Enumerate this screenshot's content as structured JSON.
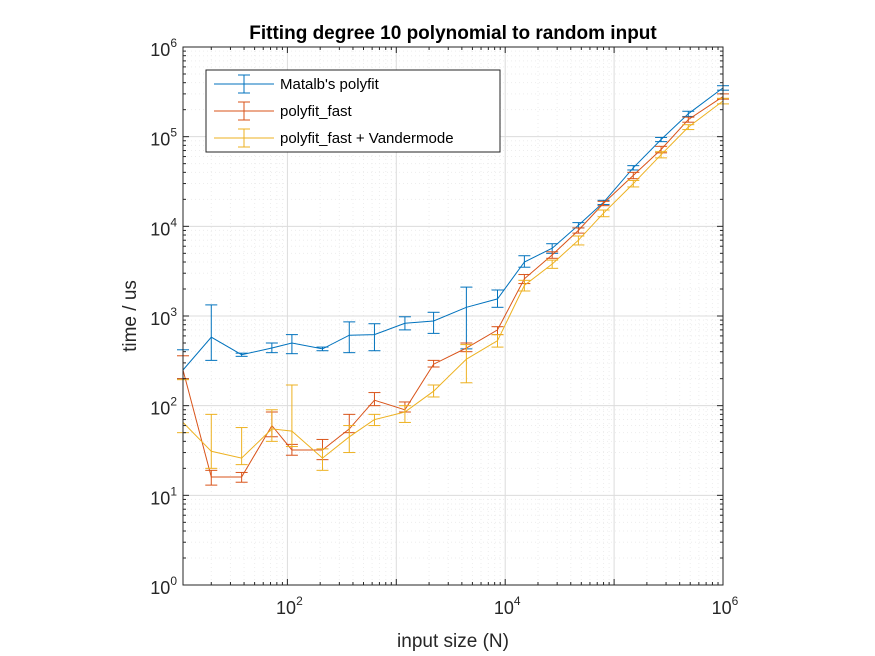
{
  "chart_data": {
    "type": "line",
    "title": "Fitting degree 10 polynomial to random input",
    "xlabel": "input size (N)",
    "ylabel": "time / us",
    "xscale": "log",
    "yscale": "log",
    "xlim": [
      11,
      1000000
    ],
    "ylim": [
      1,
      1000000
    ],
    "x_ticks": [
      {
        "base": "10",
        "exp": "2",
        "value": 100
      },
      {
        "base": "10",
        "exp": "4",
        "value": 10000
      },
      {
        "base": "10",
        "exp": "6",
        "value": 1000000
      }
    ],
    "y_ticks": [
      {
        "base": "10",
        "exp": "0",
        "value": 1
      },
      {
        "base": "10",
        "exp": "1",
        "value": 10
      },
      {
        "base": "10",
        "exp": "2",
        "value": 100
      },
      {
        "base": "10",
        "exp": "3",
        "value": 1000
      },
      {
        "base": "10",
        "exp": "4",
        "value": 10000
      },
      {
        "base": "10",
        "exp": "5",
        "value": 100000
      },
      {
        "base": "10",
        "exp": "6",
        "value": 1000000
      }
    ],
    "grid": true,
    "legend_position": "top-left",
    "x": [
      11,
      20,
      38,
      72,
      110,
      210,
      370,
      630,
      1200,
      2200,
      4400,
      8500,
      15000,
      27000,
      47000,
      80000,
      150000,
      270000,
      480000,
      1000000
    ],
    "series": [
      {
        "name": "Matalb's polyfit",
        "color": "#0072bd",
        "values": [
          250,
          580,
          370,
          440,
          500,
          430,
          610,
          620,
          830,
          880,
          1250,
          1550,
          4000,
          5700,
          10300,
          18500,
          45000,
          93000,
          180000,
          350000
        ],
        "err_low": [
          200,
          320,
          355,
          390,
          380,
          410,
          390,
          410,
          700,
          640,
          430,
          1250,
          3500,
          5000,
          9600,
          17500,
          42500,
          88000,
          168000,
          330000
        ],
        "err_high": [
          420,
          1330,
          385,
          500,
          620,
          450,
          860,
          820,
          980,
          1100,
          2100,
          1950,
          4700,
          6400,
          11000,
          19500,
          47500,
          98000,
          192000,
          370000
        ]
      },
      {
        "name": "polyfit_fast",
        "color": "#d95319",
        "values": [
          250,
          16,
          16,
          60,
          32,
          32,
          55,
          115,
          90,
          290,
          440,
          700,
          2600,
          4800,
          9000,
          18000,
          37000,
          72000,
          155000,
          280000
        ],
        "err_low": [
          200,
          13,
          14,
          45,
          28,
          25,
          50,
          100,
          85,
          270,
          400,
          620,
          2300,
          4400,
          8400,
          17000,
          34000,
          66000,
          145000,
          262000
        ],
        "err_high": [
          360,
          19,
          18,
          85,
          37,
          42,
          80,
          140,
          110,
          320,
          500,
          760,
          2900,
          5200,
          9600,
          19000,
          40000,
          78000,
          165000,
          300000
        ]
      },
      {
        "name": "polyfit_fast + Vandermode",
        "color": "#edb120",
        "values": [
          65,
          31,
          26,
          55,
          52,
          26,
          45,
          70,
          85,
          145,
          330,
          530,
          2200,
          3800,
          7000,
          14000,
          30000,
          63000,
          128000,
          250000
        ],
        "err_low": [
          50,
          20,
          22,
          40,
          35,
          19,
          30,
          60,
          65,
          125,
          180,
          450,
          1900,
          3400,
          6200,
          12800,
          27500,
          58000,
          120000,
          232000
        ],
        "err_high": [
          195,
          80,
          57,
          90,
          170,
          33,
          60,
          80,
          100,
          170,
          480,
          620,
          2500,
          4200,
          7800,
          15200,
          32500,
          68000,
          136000,
          268000
        ]
      }
    ]
  }
}
